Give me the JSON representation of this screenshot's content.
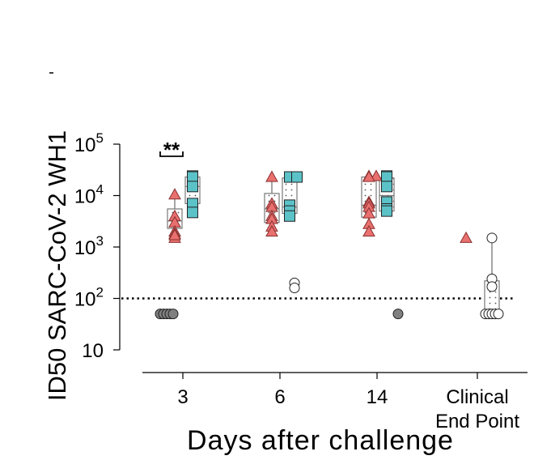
{
  "chart_data": {
    "type": "scatter",
    "title": "",
    "xlabel": "Days after challenge",
    "ylabel": "ID50 SARC-CoV-2 WH1",
    "yscale": "log",
    "ylim": [
      10,
      100000
    ],
    "y_ticks": [
      {
        "value": 10,
        "base": "10",
        "exp": ""
      },
      {
        "value": 100,
        "base": "10",
        "exp": "2"
      },
      {
        "value": 1000,
        "base": "10",
        "exp": "3"
      },
      {
        "value": 10000,
        "base": "10",
        "exp": "4"
      },
      {
        "value": 100000,
        "base": "10",
        "exp": "5"
      }
    ],
    "categories": [
      {
        "label": "3",
        "label2": ""
      },
      {
        "label": "6",
        "label2": ""
      },
      {
        "label": "14",
        "label2": ""
      },
      {
        "label": "Clinical",
        "label2": "End Point"
      }
    ],
    "threshold": 100,
    "series": [
      {
        "marker": "triangle",
        "fill": "#e8706f",
        "groups": [
          {
            "cat": 0,
            "points": [
              10500,
              4000,
              3000,
              2000,
              1800,
              1500,
              1700
            ],
            "box": [
              2300,
              5500
            ],
            "median": 3200,
            "whisker": [
              1500,
              10500
            ]
          },
          {
            "cat": 1,
            "points": [
              23000,
              7000,
              6000,
              4000,
              3500,
              2500,
              2000
            ],
            "box": [
              3000,
              11000
            ],
            "median": 5500,
            "whisker": [
              2000,
              23000
            ]
          },
          {
            "cat": 2,
            "points": [
              24000,
              24000,
              23000,
              7500,
              7000,
              6000,
              4500,
              2800,
              2000
            ],
            "box": [
              3800,
              23000
            ],
            "median": 6500,
            "whisker": [
              2000,
              24000
            ]
          },
          {
            "cat": 3,
            "points": [
              1500
            ],
            "box": null,
            "median": 1500,
            "whisker": null
          }
        ]
      },
      {
        "marker": "square",
        "fill": "#5bc2c8",
        "groups": [
          {
            "cat": 0,
            "points": [
              24000,
              23000,
              15000,
              7000,
              4700
            ],
            "box": [
              7000,
              23000
            ],
            "median": 15000,
            "whisker": [
              4700,
              24000
            ]
          },
          {
            "cat": 1,
            "points": [
              23000,
              23000,
              6500,
              5000,
              4000
            ],
            "box": [
              4500,
              22000
            ],
            "median": 6000,
            "whisker": [
              4000,
              23000
            ]
          },
          {
            "cat": 2,
            "points": [
              24000,
              23000,
              15000,
              7500,
              5500,
              5000
            ],
            "box": [
              5000,
              22000
            ],
            "median": 10000,
            "whisker": [
              5000,
              24000
            ]
          }
        ]
      },
      {
        "marker": "circle-filled",
        "fill": "#808080",
        "groups": [
          {
            "cat": 0,
            "points": [
              50,
              50,
              50,
              50,
              50
            ],
            "box": null,
            "median": null,
            "whisker": null
          },
          {
            "cat": 2,
            "points": [
              50
            ],
            "box": null,
            "median": null,
            "whisker": null
          }
        ]
      },
      {
        "marker": "circle-open",
        "fill": "#ffffff",
        "groups": [
          {
            "cat": 1,
            "points": [
              200,
              160
            ],
            "box": null,
            "median": 180,
            "whisker": null
          },
          {
            "cat": 3,
            "points": [
              1500,
              240,
              170,
              50,
              50,
              50,
              50,
              50
            ],
            "box": [
              50,
              220
            ],
            "median": 50,
            "whisker": [
              50,
              1500
            ]
          }
        ]
      }
    ],
    "annotations": [
      {
        "text": "**",
        "cat": 0,
        "y": 120000
      }
    ]
  }
}
